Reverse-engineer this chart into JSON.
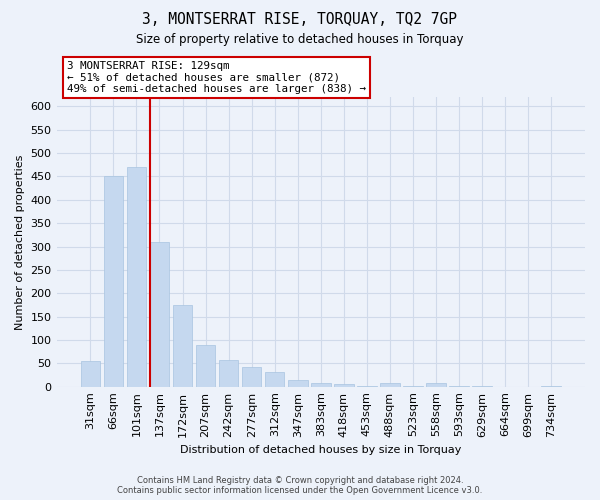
{
  "title": "3, MONTSERRAT RISE, TORQUAY, TQ2 7GP",
  "subtitle": "Size of property relative to detached houses in Torquay",
  "xlabel": "Distribution of detached houses by size in Torquay",
  "ylabel": "Number of detached properties",
  "bar_labels": [
    "31sqm",
    "66sqm",
    "101sqm",
    "137sqm",
    "172sqm",
    "207sqm",
    "242sqm",
    "277sqm",
    "312sqm",
    "347sqm",
    "383sqm",
    "418sqm",
    "453sqm",
    "488sqm",
    "523sqm",
    "558sqm",
    "593sqm",
    "629sqm",
    "664sqm",
    "699sqm",
    "734sqm"
  ],
  "bar_values": [
    55,
    450,
    470,
    310,
    175,
    90,
    58,
    42,
    32,
    15,
    8,
    6,
    2,
    7,
    2,
    8,
    2,
    1,
    0,
    0,
    2
  ],
  "bar_color": "#c5d8ef",
  "bar_edge_color": "#a8c4e0",
  "vline_index": 3,
  "vline_color": "#cc0000",
  "ylim": [
    0,
    620
  ],
  "yticks": [
    0,
    50,
    100,
    150,
    200,
    250,
    300,
    350,
    400,
    450,
    500,
    550,
    600
  ],
  "annotation_title": "3 MONTSERRAT RISE: 129sqm",
  "annotation_line1": "← 51% of detached houses are smaller (872)",
  "annotation_line2": "49% of semi-detached houses are larger (838) →",
  "annotation_box_color": "#ffffff",
  "annotation_box_edge": "#cc0000",
  "footer_line1": "Contains HM Land Registry data © Crown copyright and database right 2024.",
  "footer_line2": "Contains public sector information licensed under the Open Government Licence v3.0.",
  "bg_color": "#edf2fa",
  "plot_bg_color": "#edf2fa",
  "grid_color": "#d0daea"
}
